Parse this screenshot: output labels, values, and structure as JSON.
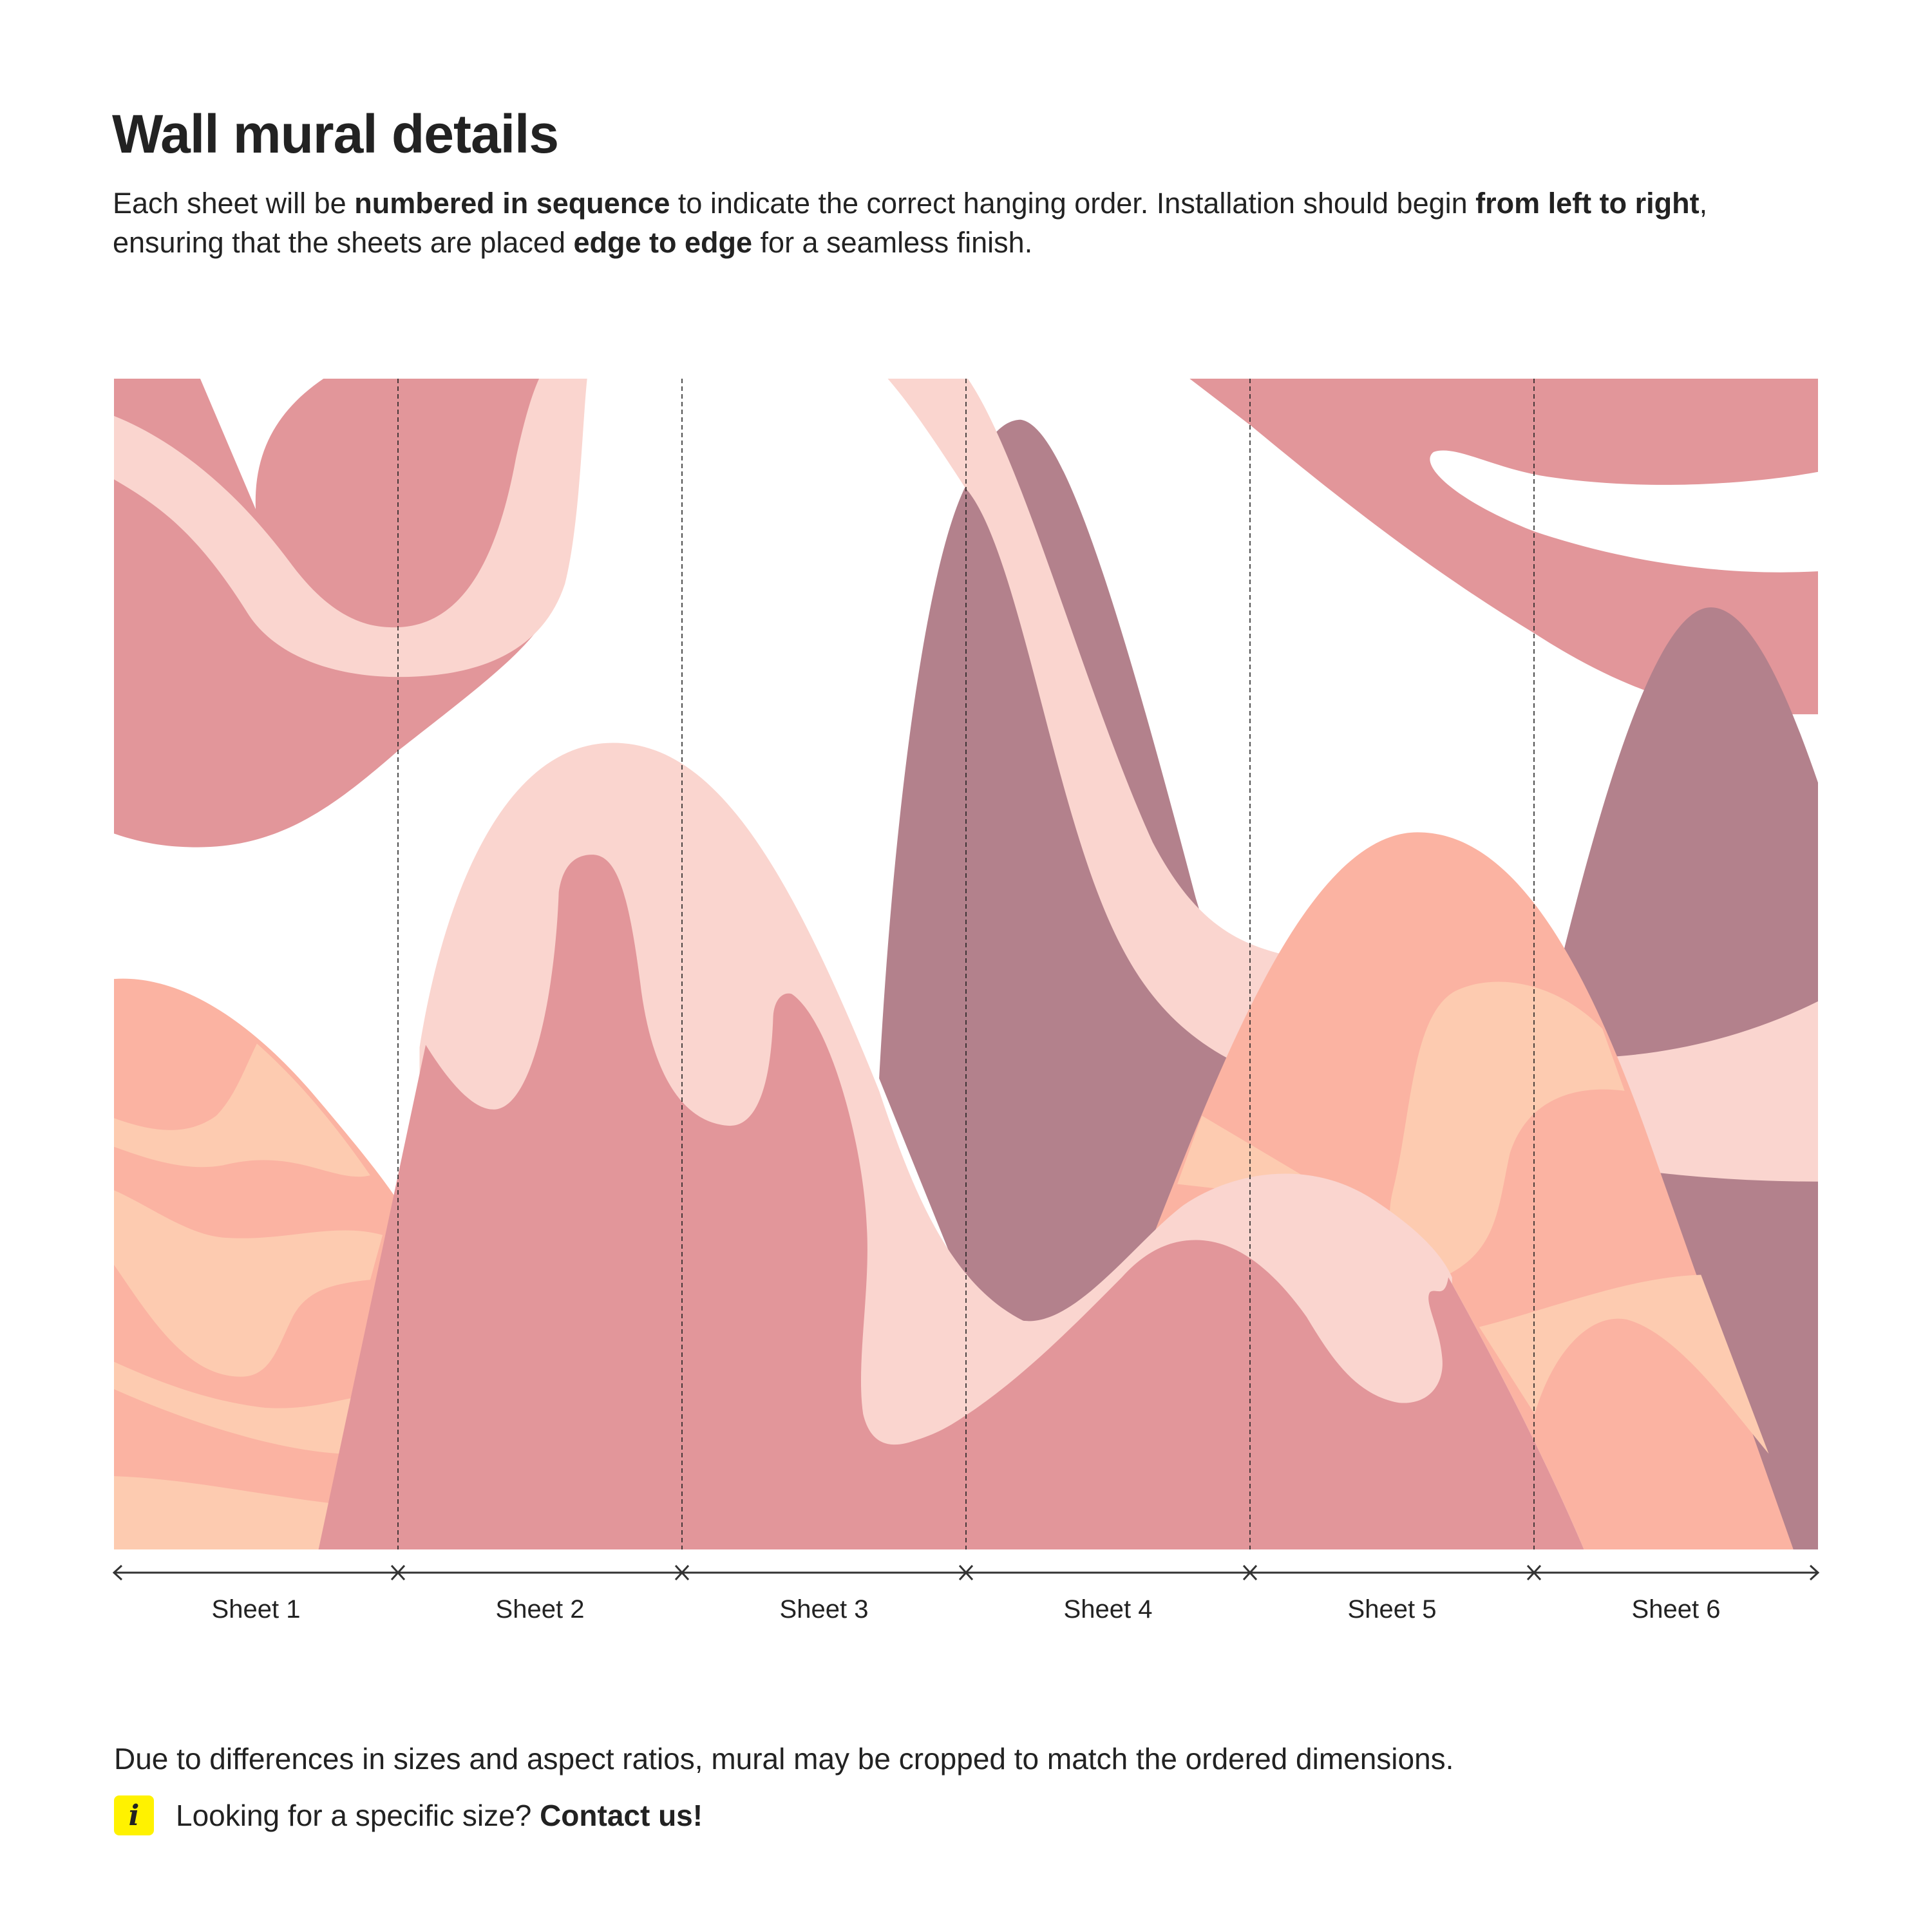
{
  "header": {
    "title": "Wall mural details"
  },
  "intro": {
    "line1": {
      "part1": "Each sheet will be ",
      "bold1": "numbered in sequence",
      "part2": " to indicate the correct hanging order. Installation should begin ",
      "bold2": "from left to right",
      "part3": ","
    },
    "line2": {
      "part1": "ensuring that the sheets are placed ",
      "bold1": "edge to edge",
      "part2": " for a seamless finish."
    }
  },
  "sheets": [
    {
      "label": "Sheet 1"
    },
    {
      "label": "Sheet 2"
    },
    {
      "label": "Sheet 3"
    },
    {
      "label": "Sheet 4"
    },
    {
      "label": "Sheet 5"
    },
    {
      "label": "Sheet 6"
    }
  ],
  "footer": {
    "note": "Due to differences in sizes and aspect ratios, mural may be cropped to match the ordered dimensions.",
    "info": {
      "icon": "info-icon",
      "glyph": "i",
      "text": "Looking for a specific size? ",
      "link": "Contact us!"
    }
  },
  "colors": {
    "text": "#222222",
    "dusty_pink": "#E2969A",
    "light_pink": "#FAD5CF",
    "mauve": "#B3818C",
    "salmon": "#FBB3A2",
    "peach": "#FDCBB0",
    "info_yellow": "#FFF200"
  },
  "icons": {
    "axis_start": "arrow-left-icon",
    "axis_end": "arrow-right-icon",
    "sheet_boundary": "cross-mark-icon"
  }
}
